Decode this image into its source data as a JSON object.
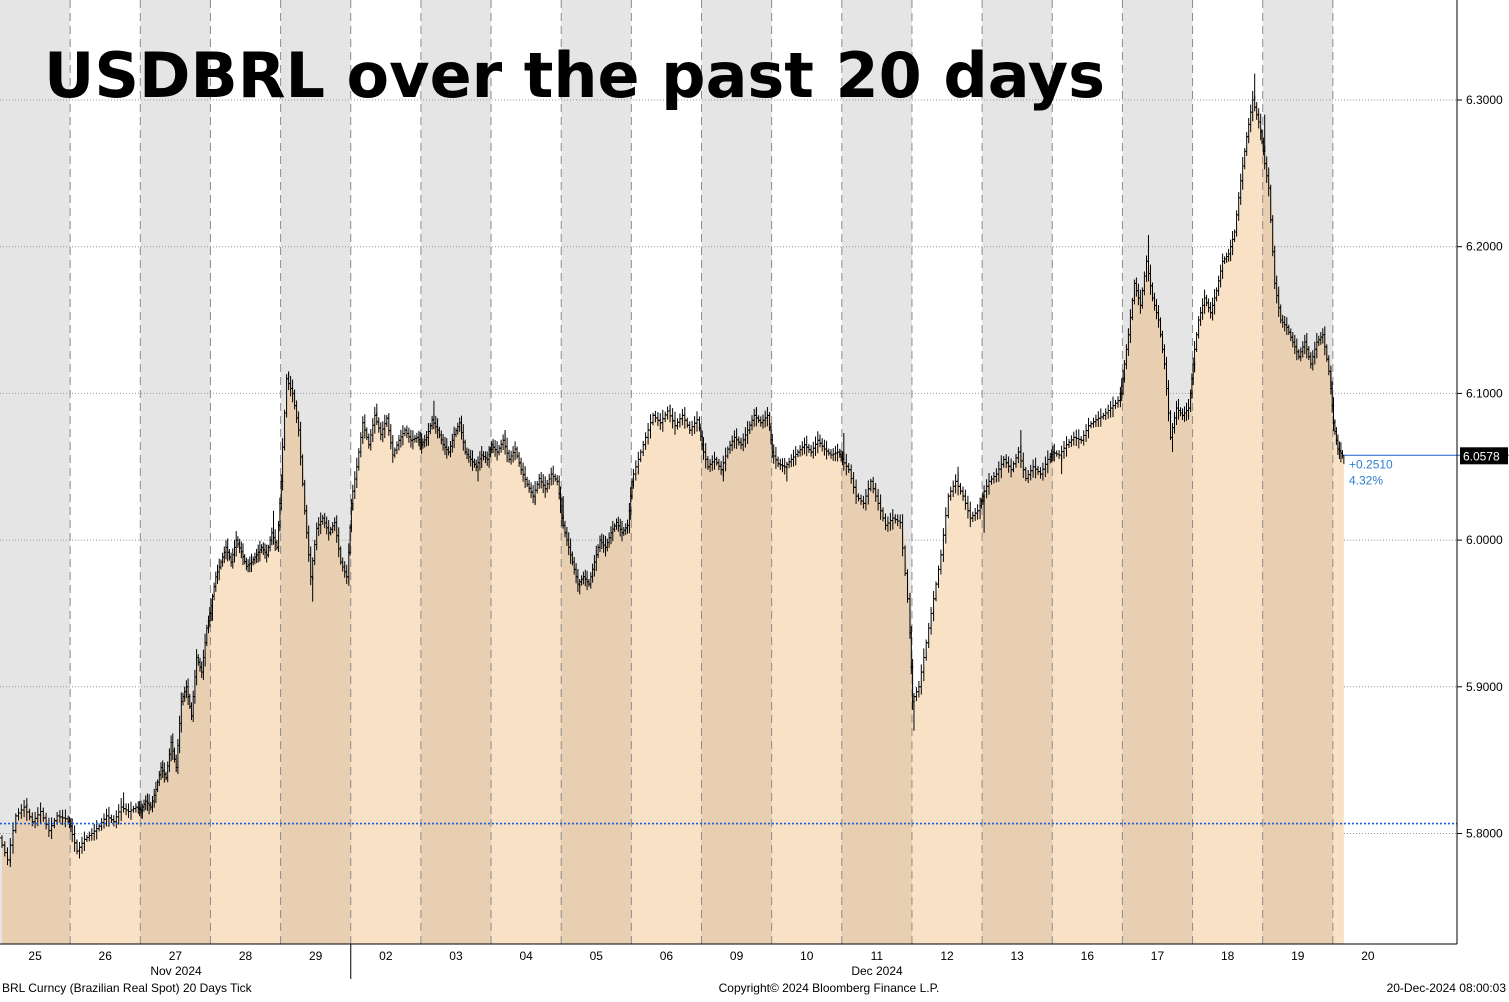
{
  "chart_data": {
    "type": "line",
    "title": "USDBRL over the past 20 days",
    "security": "BRL Curncy (Brazilian Real Spot) 20 Days  Tick",
    "copyright": "Copyright© 2024 Bloomberg Finance L.P.",
    "timestamp": "20-Dec-2024 08:00:03",
    "y_ticks": [
      "6.3000",
      "6.2000",
      "6.1000",
      "6.0000",
      "5.9000",
      "5.8000"
    ],
    "ylim": [
      5.74,
      6.385
    ],
    "x_ticks": [
      "25",
      "26",
      "27",
      "28",
      "29",
      "02",
      "03",
      "04",
      "05",
      "06",
      "09",
      "10",
      "11",
      "12",
      "13",
      "16",
      "17",
      "18",
      "19",
      "20"
    ],
    "months": [
      "Nov 2024",
      "Dec 2024"
    ],
    "last_price": "6.0578",
    "last_value": 6.0578,
    "change_abs": "+0.2510",
    "change_pct": "4.32%",
    "reference_level": 5.8068,
    "grid": true,
    "colors": {
      "area_fill": "#f9e1c6",
      "shaded_fill": "#e5e5e5",
      "line": "#000000",
      "reference_line": "#1a5fd4",
      "change_text": "#2f7fd0",
      "last_label_bg": "#000000"
    },
    "days": [
      {
        "label": "25",
        "o": 5.797,
        "h": 5.82,
        "l": 5.78,
        "c": 5.81,
        "path": [
          5.797,
          5.782,
          5.812,
          5.818,
          5.808,
          5.815,
          5.802,
          5.812,
          5.81
        ]
      },
      {
        "label": "26",
        "o": 5.805,
        "h": 5.828,
        "l": 5.783,
        "c": 5.818,
        "path": [
          5.805,
          5.788,
          5.796,
          5.8,
          5.805,
          5.812,
          5.808,
          5.818,
          5.815,
          5.818
        ]
      },
      {
        "label": "27",
        "o": 5.816,
        "h": 5.945,
        "l": 5.81,
        "c": 5.94,
        "path": [
          5.816,
          5.822,
          5.818,
          5.83,
          5.845,
          5.838,
          5.862,
          5.845,
          5.89,
          5.9,
          5.88,
          5.92,
          5.91,
          5.94
        ]
      },
      {
        "label": "28",
        "o": 5.955,
        "h": 6.02,
        "l": 5.945,
        "c": 5.995,
        "path": [
          5.955,
          5.975,
          5.985,
          5.995,
          5.985,
          6.0,
          5.992,
          5.982,
          5.985,
          5.99,
          5.995,
          5.99,
          6.005,
          5.995
        ]
      },
      {
        "label": "29",
        "o": 6.04,
        "h": 6.115,
        "l": 5.958,
        "c": 5.975,
        "path": [
          6.04,
          6.11,
          6.1,
          6.075,
          6.02,
          5.975,
          6.008,
          6.015,
          6.005,
          6.012,
          5.985,
          5.975
        ]
      },
      {
        "label": "02",
        "o": 6.025,
        "h": 6.093,
        "l": 6.02,
        "c": 6.07,
        "path": [
          6.025,
          6.05,
          6.08,
          6.065,
          6.085,
          6.072,
          6.083,
          6.058,
          6.068,
          6.075,
          6.068,
          6.07
        ]
      },
      {
        "label": "03",
        "o": 6.065,
        "h": 6.095,
        "l": 6.04,
        "c": 6.055,
        "path": [
          6.065,
          6.07,
          6.082,
          6.075,
          6.065,
          6.06,
          6.072,
          6.08,
          6.06,
          6.055,
          6.05,
          6.058,
          6.055
        ]
      },
      {
        "label": "04",
        "o": 6.065,
        "h": 6.075,
        "l": 6.025,
        "c": 6.04,
        "path": [
          6.065,
          6.06,
          6.068,
          6.055,
          6.062,
          6.048,
          6.038,
          6.03,
          6.042,
          6.035,
          6.045,
          6.04
        ]
      },
      {
        "label": "05",
        "o": 6.015,
        "h": 6.03,
        "l": 5.963,
        "c": 6.01,
        "path": [
          6.015,
          6.0,
          5.985,
          5.97,
          5.975,
          5.97,
          5.985,
          6.0,
          5.995,
          6.005,
          6.012,
          6.005,
          6.01
        ]
      },
      {
        "label": "06",
        "o": 6.04,
        "h": 6.092,
        "l": 6.035,
        "c": 6.082,
        "path": [
          6.04,
          6.055,
          6.07,
          6.085,
          6.08,
          6.088,
          6.078,
          6.085,
          6.075,
          6.082
        ]
      },
      {
        "label": "09",
        "o": 6.065,
        "h": 6.09,
        "l": 6.04,
        "c": 6.085,
        "path": [
          6.065,
          6.05,
          6.055,
          6.048,
          6.062,
          6.07,
          6.065,
          6.075,
          6.085,
          6.08,
          6.085
        ]
      },
      {
        "label": "10",
        "o": 6.06,
        "h": 6.072,
        "l": 6.04,
        "c": 6.06,
        "path": [
          6.06,
          6.052,
          6.05,
          6.055,
          6.06,
          6.065,
          6.06,
          6.068,
          6.062,
          6.058,
          6.06
        ]
      },
      {
        "label": "11",
        "o": 6.055,
        "h": 6.073,
        "l": 5.945,
        "c": 5.96,
        "path": [
          6.055,
          6.048,
          6.03,
          6.025,
          6.04,
          6.025,
          6.01,
          6.015,
          6.012,
          5.96
        ]
      },
      {
        "label": "12",
        "o": 5.89,
        "h": 6.05,
        "l": 5.87,
        "c": 6.02,
        "path": [
          5.89,
          5.9,
          5.93,
          5.96,
          5.99,
          6.03,
          6.04,
          6.03,
          6.015,
          6.02
        ]
      },
      {
        "label": "13",
        "o": 6.03,
        "h": 6.075,
        "l": 6.005,
        "c": 6.055,
        "path": [
          6.03,
          6.04,
          6.045,
          6.055,
          6.048,
          6.06,
          6.042,
          6.05,
          6.045,
          6.055
        ]
      },
      {
        "label": "16",
        "o": 6.06,
        "h": 6.1,
        "l": 6.045,
        "c": 6.095,
        "path": [
          6.06,
          6.058,
          6.065,
          6.07,
          6.068,
          6.078,
          6.082,
          6.085,
          6.09,
          6.095
        ]
      },
      {
        "label": "17",
        "o": 6.11,
        "h": 6.208,
        "l": 6.06,
        "c": 6.09,
        "path": [
          6.11,
          6.14,
          6.175,
          6.16,
          6.19,
          6.165,
          6.15,
          6.12,
          6.07,
          6.09,
          6.085,
          6.09
        ]
      },
      {
        "label": "18",
        "o": 6.12,
        "h": 6.318,
        "l": 6.115,
        "c": 6.285,
        "path": [
          6.12,
          6.15,
          6.165,
          6.155,
          6.17,
          6.19,
          6.195,
          6.21,
          6.245,
          6.275,
          6.3,
          6.285
        ]
      },
      {
        "label": "19",
        "o": 6.265,
        "h": 6.29,
        "l": 6.105,
        "c": 6.115,
        "path": [
          6.265,
          6.24,
          6.175,
          6.15,
          6.145,
          6.135,
          6.125,
          6.135,
          6.12,
          6.135,
          6.14,
          6.115
        ]
      },
      {
        "label": "20",
        "o": 6.08,
        "h": 6.082,
        "l": 6.052,
        "c": 6.0578,
        "path": [
          6.08,
          6.062,
          6.0578
        ]
      }
    ]
  }
}
